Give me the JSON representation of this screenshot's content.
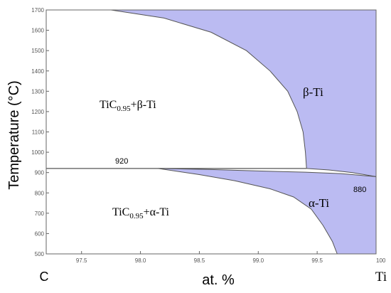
{
  "diagram": {
    "axes": {
      "x_label": "at. %",
      "y_label": "Temperature (°C)",
      "x_left_end_label": "C",
      "x_right_end_label": "Ti",
      "x_range": [
        97.2,
        100.0
      ],
      "y_range": [
        500,
        1700
      ],
      "x_ticks": [
        "97.5",
        "98.0",
        "98.5",
        "99.0",
        "99.5",
        "100"
      ],
      "y_ticks": [
        "500",
        "600",
        "700",
        "800",
        "900",
        "1000",
        "1100",
        "1200",
        "1300",
        "1400",
        "1500",
        "1600",
        "1700"
      ]
    },
    "phase_labels": {
      "tic_beta": {
        "main": "TiC",
        "sub": "0.95",
        "rest": "+β-Ti"
      },
      "tic_alpha": {
        "main": "TiC",
        "sub": "0.95",
        "rest": "+α-Ti"
      },
      "beta_ti": "β-Ti",
      "alpha_ti": "α-Ti"
    },
    "annotations": {
      "eutectoid_temp": "920",
      "transition_temp": "880"
    },
    "colors": {
      "single_phase_fill": "#bbbbf2",
      "line": "#555555"
    },
    "boundaries": {
      "beta_solvus": [
        [
          97.75,
          1700
        ],
        [
          98.2,
          1660
        ],
        [
          98.6,
          1590
        ],
        [
          98.9,
          1500
        ],
        [
          99.1,
          1400
        ],
        [
          99.25,
          1300
        ],
        [
          99.33,
          1200
        ],
        [
          99.38,
          1100
        ],
        [
          99.4,
          1000
        ],
        [
          99.41,
          920
        ]
      ],
      "eutectoid_line": [
        [
          97.2,
          920
        ],
        [
          99.41,
          920
        ]
      ],
      "beta_transus": [
        [
          99.41,
          920
        ],
        [
          99.6,
          913
        ],
        [
          99.8,
          900
        ],
        [
          100.0,
          880
        ]
      ],
      "alpha_transus": [
        [
          98.15,
          920
        ],
        [
          98.6,
          915
        ],
        [
          99.0,
          908
        ],
        [
          99.4,
          902
        ],
        [
          99.7,
          895
        ],
        [
          100.0,
          880
        ]
      ],
      "alpha_solvus": [
        [
          98.15,
          920
        ],
        [
          98.5,
          890
        ],
        [
          98.8,
          860
        ],
        [
          99.1,
          820
        ],
        [
          99.3,
          780
        ],
        [
          99.45,
          720
        ],
        [
          99.55,
          640
        ],
        [
          99.63,
          560
        ],
        [
          99.67,
          500
        ]
      ]
    }
  }
}
